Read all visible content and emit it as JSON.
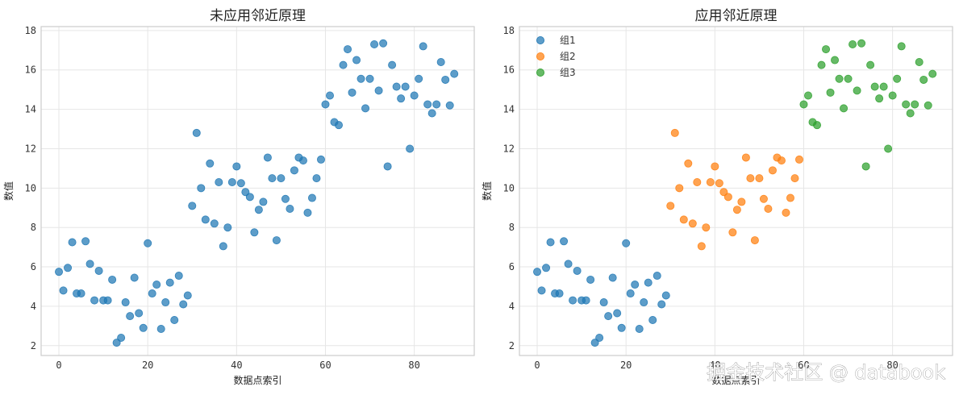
{
  "colors": {
    "group1": "#1f77b4",
    "group2": "#ff7f0e",
    "group3": "#2ca02c",
    "grid": "#e6e6e6",
    "frame": "#cccccc"
  },
  "watermark": "掘金技术社区 @ databook",
  "chart_data": [
    {
      "type": "scatter",
      "title": "未应用邻近原理",
      "xlabel": "数据点索引",
      "ylabel": "数值",
      "xlim": [
        -4,
        93.5
      ],
      "ylim": [
        1.5,
        18.2
      ],
      "xticks": [
        0,
        20,
        40,
        60,
        80
      ],
      "yticks": [
        2,
        4,
        6,
        8,
        10,
        12,
        14,
        16,
        18
      ],
      "grid": true,
      "legend": null,
      "series": [
        {
          "x": [
            0,
            1,
            2,
            3,
            4,
            5,
            6,
            7,
            8,
            9,
            10,
            11,
            12,
            13,
            14,
            15,
            16,
            17,
            18,
            19,
            20,
            21,
            22,
            23,
            24,
            25,
            26,
            27,
            28,
            29,
            30,
            31,
            32,
            33,
            34,
            35,
            36,
            37,
            38,
            39,
            40,
            41,
            42,
            43,
            44,
            45,
            46,
            47,
            48,
            49,
            50,
            51,
            52,
            53,
            54,
            55,
            56,
            57,
            58,
            59,
            60,
            61,
            62,
            63,
            64,
            65,
            66,
            67,
            68,
            69,
            70,
            71,
            72,
            73,
            74,
            75,
            76,
            77,
            78,
            79,
            80,
            81,
            82,
            83,
            84,
            85,
            86,
            87,
            88,
            89
          ],
          "y": [
            5.75,
            4.8,
            5.95,
            7.25,
            4.65,
            4.65,
            7.3,
            6.15,
            4.3,
            5.8,
            4.3,
            4.3,
            5.35,
            2.15,
            2.4,
            4.2,
            3.5,
            5.45,
            3.65,
            2.9,
            7.2,
            4.65,
            5.1,
            2.85,
            4.2,
            5.2,
            3.3,
            5.55,
            4.1,
            4.55,
            9.1,
            12.8,
            10,
            8.4,
            11.25,
            8.2,
            10.3,
            7.05,
            8,
            10.3,
            11.1,
            10.25,
            9.8,
            9.55,
            7.75,
            8.9,
            9.3,
            11.55,
            10.5,
            7.35,
            10.5,
            9.45,
            8.95,
            10.9,
            11.55,
            11.4,
            8.75,
            9.5,
            10.5,
            11.45,
            14.25,
            14.7,
            13.35,
            13.2,
            16.25,
            17.05,
            14.85,
            16.5,
            15.55,
            14.05,
            15.55,
            17.3,
            14.95,
            17.35,
            11.1,
            16.25,
            15.15,
            14.55,
            15.15,
            12,
            14.7,
            15.55,
            17.2,
            14.25,
            13.8,
            14.25,
            16.4,
            15.5,
            14.2,
            15.8
          ]
        }
      ]
    },
    {
      "type": "scatter",
      "title": "应用邻近原理",
      "xlabel": "数据点索引",
      "ylabel": "数值",
      "xlim": [
        -4,
        93.5
      ],
      "ylim": [
        1.5,
        18.2
      ],
      "xticks": [
        0,
        20,
        40,
        60,
        80
      ],
      "yticks": [
        2,
        4,
        6,
        8,
        10,
        12,
        14,
        16,
        18
      ],
      "grid": true,
      "legend": "top-left",
      "series": [
        {
          "name": "组1",
          "x": [
            0,
            1,
            2,
            3,
            4,
            5,
            6,
            7,
            8,
            9,
            10,
            11,
            12,
            13,
            14,
            15,
            16,
            17,
            18,
            19,
            20,
            21,
            22,
            23,
            24,
            25,
            26,
            27,
            28,
            29
          ],
          "y": [
            5.75,
            4.8,
            5.95,
            7.25,
            4.65,
            4.65,
            7.3,
            6.15,
            4.3,
            5.8,
            4.3,
            4.3,
            5.35,
            2.15,
            2.4,
            4.2,
            3.5,
            5.45,
            3.65,
            2.9,
            7.2,
            4.65,
            5.1,
            2.85,
            4.2,
            5.2,
            3.3,
            5.55,
            4.1,
            4.55
          ]
        },
        {
          "name": "组2",
          "x": [
            30,
            31,
            32,
            33,
            34,
            35,
            36,
            37,
            38,
            39,
            40,
            41,
            42,
            43,
            44,
            45,
            46,
            47,
            48,
            49,
            50,
            51,
            52,
            53,
            54,
            55,
            56,
            57,
            58,
            59
          ],
          "y": [
            9.1,
            12.8,
            10,
            8.4,
            11.25,
            8.2,
            10.3,
            7.05,
            8,
            10.3,
            11.1,
            10.25,
            9.8,
            9.55,
            7.75,
            8.9,
            9.3,
            11.55,
            10.5,
            7.35,
            10.5,
            9.45,
            8.95,
            10.9,
            11.55,
            11.4,
            8.75,
            9.5,
            10.5,
            11.45
          ]
        },
        {
          "name": "组3",
          "x": [
            60,
            61,
            62,
            63,
            64,
            65,
            66,
            67,
            68,
            69,
            70,
            71,
            72,
            73,
            74,
            75,
            76,
            77,
            78,
            79,
            80,
            81,
            82,
            83,
            84,
            85,
            86,
            87,
            88,
            89
          ],
          "y": [
            14.25,
            14.7,
            13.35,
            13.2,
            16.25,
            17.05,
            14.85,
            16.5,
            15.55,
            14.05,
            15.55,
            17.3,
            14.95,
            17.35,
            11.1,
            16.25,
            15.15,
            14.55,
            15.15,
            12,
            14.7,
            15.55,
            17.2,
            14.25,
            13.8,
            14.25,
            16.4,
            15.5,
            14.2,
            15.8
          ]
        }
      ]
    }
  ]
}
